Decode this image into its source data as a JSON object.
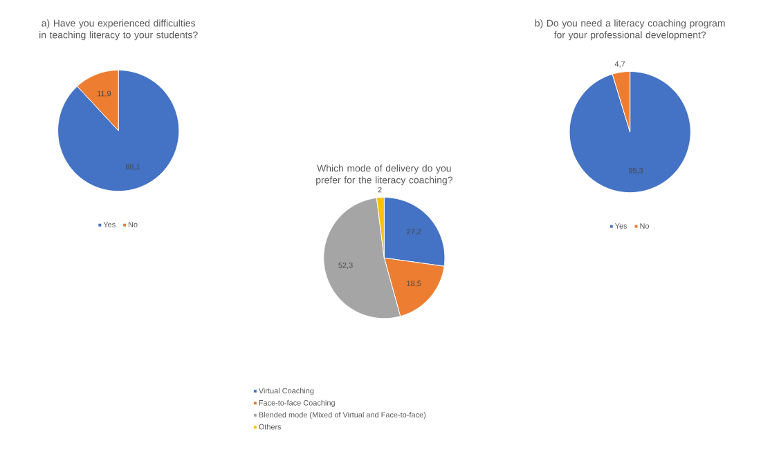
{
  "chart_data": [
    {
      "type": "pie",
      "title": "a) Have you experienced difficulties in teaching literacy to your students?",
      "categories": [
        "Yes",
        "No"
      ],
      "values": [
        88.1,
        11.9
      ],
      "colors": [
        "#4472c4",
        "#ed7d31"
      ],
      "value_labels": [
        "88,1",
        "11,9"
      ],
      "legend": "bottom"
    },
    {
      "type": "pie",
      "title": "b) Do you need a literacy coaching program for your professional development?",
      "categories": [
        "Yes",
        "No"
      ],
      "values": [
        95.3,
        4.7
      ],
      "colors": [
        "#4472c4",
        "#ed7d31"
      ],
      "value_labels": [
        "95,3",
        "4,7"
      ],
      "legend": "bottom"
    },
    {
      "type": "pie",
      "title": "Which mode of delivery do you prefer for the literacy coaching?",
      "categories": [
        "Virtual Coaching",
        "Face-to-face Coaching",
        "Blended mode (Mixed of Virtual and Face-to-face)",
        "Others"
      ],
      "values": [
        27.2,
        18.5,
        52.3,
        2
      ],
      "colors": [
        "#4472c4",
        "#ed7d31",
        "#a5a5a5",
        "#ffc000"
      ],
      "value_labels": [
        "27,2",
        "18,5",
        "52,3",
        "2"
      ],
      "legend": "bottom left"
    }
  ]
}
